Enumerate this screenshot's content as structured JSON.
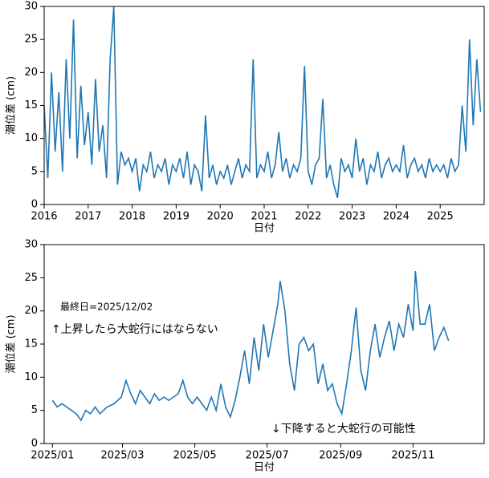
{
  "chart_data": [
    {
      "type": "line",
      "xlabel": "日付",
      "ylabel": "潮位差 (cm)",
      "xlim": [
        2016,
        2026
      ],
      "xticks": [
        2016,
        2017,
        2018,
        2019,
        2020,
        2021,
        2022,
        2023,
        2024,
        2025
      ],
      "ylim": [
        0,
        30
      ],
      "yticks": [
        0,
        5,
        10,
        15,
        20,
        25,
        30
      ],
      "x": [
        2016,
        2016.083,
        2016.167,
        2016.25,
        2016.333,
        2016.417,
        2016.5,
        2016.583,
        2016.667,
        2016.75,
        2016.833,
        2016.917,
        2017,
        2017.083,
        2017.167,
        2017.25,
        2017.333,
        2017.417,
        2017.5,
        2017.583,
        2017.667,
        2017.75,
        2017.833,
        2017.917,
        2018,
        2018.083,
        2018.167,
        2018.25,
        2018.333,
        2018.417,
        2018.5,
        2018.583,
        2018.667,
        2018.75,
        2018.833,
        2018.917,
        2019,
        2019.083,
        2019.167,
        2019.25,
        2019.333,
        2019.417,
        2019.5,
        2019.583,
        2019.667,
        2019.75,
        2019.833,
        2019.917,
        2020,
        2020.083,
        2020.167,
        2020.25,
        2020.333,
        2020.417,
        2020.5,
        2020.583,
        2020.667,
        2020.75,
        2020.833,
        2020.917,
        2021,
        2021.083,
        2021.167,
        2021.25,
        2021.333,
        2021.417,
        2021.5,
        2021.583,
        2021.667,
        2021.75,
        2021.833,
        2021.917,
        2022,
        2022.083,
        2022.167,
        2022.25,
        2022.333,
        2022.417,
        2022.5,
        2022.583,
        2022.667,
        2022.75,
        2022.833,
        2022.917,
        2023,
        2023.083,
        2023.167,
        2023.25,
        2023.333,
        2023.417,
        2023.5,
        2023.583,
        2023.667,
        2023.75,
        2023.833,
        2023.917,
        2024,
        2024.083,
        2024.167,
        2024.25,
        2024.333,
        2024.417,
        2024.5,
        2024.583,
        2024.667,
        2024.75,
        2024.833,
        2024.917,
        2025,
        2025.083,
        2025.167,
        2025.25,
        2025.333,
        2025.417,
        2025.5,
        2025.583,
        2025.667,
        2025.75,
        2025.833,
        2025.917
      ],
      "series": [
        {
          "color": "#1f77b4",
          "values": [
            15,
            4,
            20,
            8,
            17,
            5,
            22,
            10,
            28,
            7,
            18,
            9,
            14,
            6,
            19,
            8,
            12,
            4,
            22,
            30,
            3,
            8,
            6,
            7,
            5,
            7,
            2,
            6,
            5,
            8,
            4,
            6,
            5,
            7,
            3,
            6,
            5,
            7,
            4,
            8,
            3,
            6,
            5,
            2,
            13.5,
            4,
            6,
            3,
            5,
            4,
            6,
            3,
            5,
            7,
            4,
            6,
            5,
            22,
            4,
            6,
            5,
            8,
            4,
            6,
            11,
            5,
            7,
            4,
            6,
            5,
            7,
            21,
            5,
            3,
            6,
            7,
            16,
            4,
            6,
            3,
            1,
            7,
            5,
            6,
            4,
            10,
            5,
            7,
            3,
            6,
            5,
            8,
            4,
            6,
            7,
            5,
            6,
            5,
            9,
            4,
            6,
            7,
            5,
            6,
            4,
            7,
            5,
            6,
            5,
            6,
            4,
            7,
            5,
            6,
            15,
            8,
            25,
            12,
            22,
            14
          ]
        }
      ]
    },
    {
      "type": "line",
      "xlabel": "日付",
      "ylabel": "潮位差 (cm)",
      "annotations": [
        "最終日=2025/12/02",
        "↑上昇したら大蛇行にはならない",
        "↓下降すると大蛇行の可能性"
      ],
      "xlim": [
        -7,
        364
      ],
      "xticks": [
        {
          "value": 0,
          "label": "2025/01"
        },
        {
          "value": 59,
          "label": "2025/03"
        },
        {
          "value": 120,
          "label": "2025/05"
        },
        {
          "value": 181,
          "label": "2025/07"
        },
        {
          "value": 243,
          "label": "2025/09"
        },
        {
          "value": 304,
          "label": "2025/11"
        }
      ],
      "ylim": [
        0,
        30
      ],
      "yticks": [
        0,
        5,
        10,
        15,
        20,
        25,
        30
      ],
      "x": [
        0,
        4,
        8,
        12,
        16,
        20,
        24,
        28,
        32,
        36,
        40,
        46,
        52,
        58,
        62,
        66,
        70,
        74,
        78,
        82,
        86,
        90,
        94,
        98,
        102,
        106,
        110,
        114,
        118,
        122,
        126,
        130,
        134,
        138,
        142,
        146,
        150,
        154,
        158,
        162,
        166,
        170,
        174,
        178,
        182,
        186,
        190,
        192,
        196,
        200,
        204,
        208,
        212,
        216,
        220,
        224,
        228,
        232,
        236,
        240,
        244,
        248,
        252,
        256,
        260,
        264,
        268,
        272,
        276,
        280,
        284,
        288,
        292,
        296,
        300,
        304,
        306,
        310,
        314,
        318,
        322,
        326,
        330,
        334
      ],
      "series": [
        {
          "color": "#1f77b4",
          "values": [
            6.5,
            5.5,
            6,
            5.5,
            5,
            4.5,
            3.5,
            5,
            4.5,
            5.5,
            4.5,
            5.5,
            6,
            7,
            9.5,
            7.5,
            6,
            8,
            7,
            6,
            7.5,
            6.5,
            7,
            6.5,
            7,
            7.5,
            9.5,
            7,
            6,
            7,
            6,
            5,
            7,
            5,
            9,
            5.5,
            4,
            6.5,
            10,
            14,
            9,
            16,
            11,
            18,
            13,
            17,
            21,
            24.5,
            20,
            12,
            8,
            15,
            16,
            14,
            15,
            9,
            12,
            8,
            9,
            6,
            4.5,
            9,
            14,
            20.5,
            11,
            8,
            14,
            18,
            13,
            16,
            18.5,
            14,
            18,
            16,
            21,
            17,
            26,
            18,
            18,
            21,
            14,
            16,
            17.5,
            15.5
          ]
        }
      ]
    }
  ]
}
